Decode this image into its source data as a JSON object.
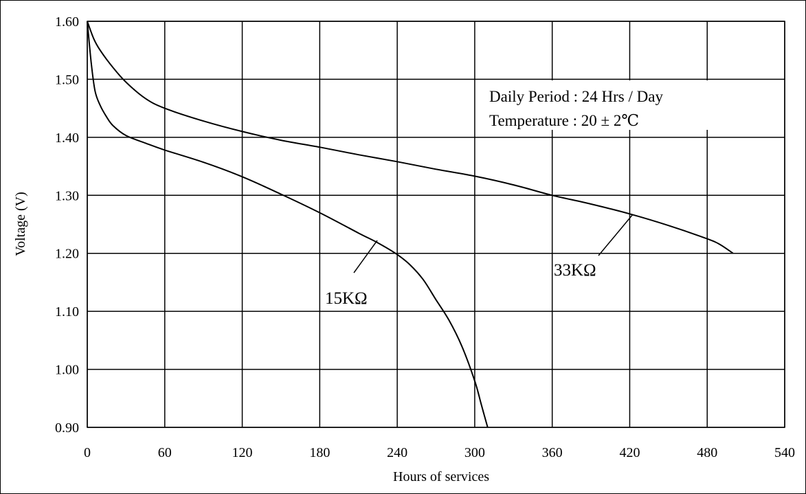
{
  "chart_data": {
    "type": "line",
    "title": "",
    "xlabel": "Hours of services",
    "ylabel": "Voltage (V)",
    "xlim": [
      0,
      540
    ],
    "ylim": [
      0.9,
      1.6
    ],
    "xticks": [
      "0",
      "60",
      "120",
      "180",
      "240",
      "300",
      "360",
      "420",
      "480",
      "540"
    ],
    "yticks": [
      "0.90",
      "1.00",
      "1.10",
      "1.20",
      "1.30",
      "1.40",
      "1.50",
      "1.60"
    ],
    "grid": true,
    "annotations": [
      "Daily Period : 24 Hrs / Day",
      "Temperature : 20 ± 2℃"
    ],
    "series": [
      {
        "name": "15KΩ",
        "x": [
          0,
          3,
          6,
          10,
          15,
          20,
          30,
          45,
          60,
          90,
          120,
          150,
          180,
          210,
          225,
          240,
          250,
          260,
          270,
          280,
          290,
          300,
          305,
          310
        ],
        "y": [
          1.6,
          1.53,
          1.48,
          1.455,
          1.435,
          1.42,
          1.403,
          1.39,
          1.378,
          1.357,
          1.332,
          1.302,
          1.27,
          1.235,
          1.218,
          1.198,
          1.18,
          1.155,
          1.12,
          1.085,
          1.04,
          0.98,
          0.94,
          0.9
        ]
      },
      {
        "name": "33KΩ",
        "x": [
          0,
          5,
          10,
          20,
          30,
          45,
          60,
          90,
          120,
          150,
          180,
          210,
          240,
          270,
          300,
          330,
          360,
          390,
          420,
          450,
          480,
          490,
          500
        ],
        "y": [
          1.6,
          1.57,
          1.55,
          1.52,
          1.495,
          1.467,
          1.45,
          1.428,
          1.41,
          1.395,
          1.383,
          1.37,
          1.358,
          1.345,
          1.333,
          1.318,
          1.3,
          1.285,
          1.268,
          1.248,
          1.225,
          1.215,
          1.2
        ]
      }
    ]
  }
}
